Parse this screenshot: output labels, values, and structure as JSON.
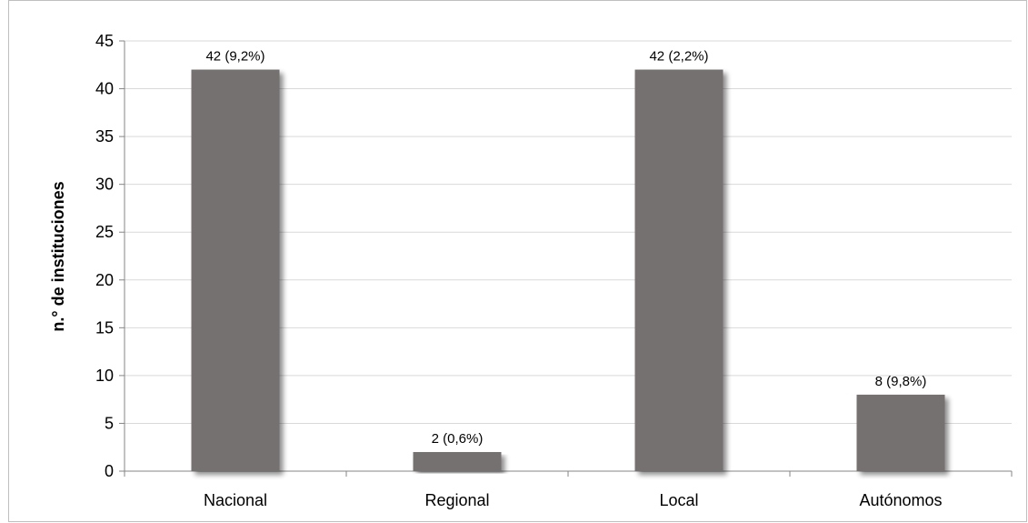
{
  "chart_data": {
    "type": "bar",
    "title": "",
    "xlabel": "",
    "ylabel": "n.° de instituciones",
    "ylim": [
      0,
      45
    ],
    "yticks": [
      0,
      5,
      10,
      15,
      20,
      25,
      30,
      35,
      40,
      45
    ],
    "grid": true,
    "legend": "none",
    "categories": [
      "Nacional",
      "Regional",
      "Local",
      "Autónomos"
    ],
    "values": [
      42,
      2,
      42,
      8
    ],
    "data_labels": [
      "42 (9,2%)",
      "2 (0,6%)",
      "42 (2,2%)",
      "8 (9,8%)"
    ],
    "colors": {
      "bar": "#767171",
      "grid": "#d9d9d9",
      "axis": "#868686"
    }
  }
}
